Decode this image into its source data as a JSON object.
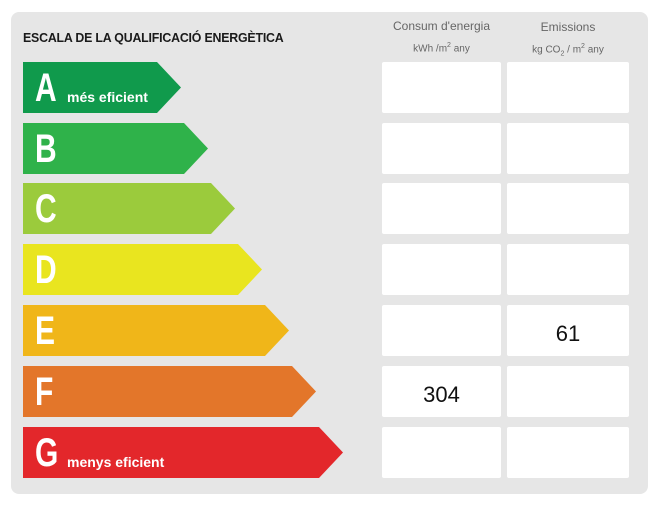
{
  "title": "ESCALA DE LA QUALIFICACIÓ ENERGÈTICA",
  "columns": {
    "energy": {
      "label": "Consum d'energia",
      "unit_prefix": "kWh /m",
      "unit_exp": "2",
      "unit_suffix": " any"
    },
    "emissions": {
      "label": "Emissions",
      "unit_prefix": "kg CO",
      "unit_sub": "2",
      "unit_mid": " / m",
      "unit_exp": "2",
      "unit_suffix": " any"
    }
  },
  "rows": [
    {
      "letter": "A",
      "caption": "més eficient",
      "color": "#109a4c",
      "energy": "",
      "emissions": ""
    },
    {
      "letter": "B",
      "caption": "",
      "color": "#2fb24a",
      "energy": "",
      "emissions": ""
    },
    {
      "letter": "C",
      "caption": "",
      "color": "#9bcb3c",
      "energy": "",
      "emissions": ""
    },
    {
      "letter": "D",
      "caption": "",
      "color": "#e9e51f",
      "energy": "",
      "emissions": ""
    },
    {
      "letter": "E",
      "caption": "",
      "color": "#f0b619",
      "energy": "",
      "emissions": "61"
    },
    {
      "letter": "F",
      "caption": "",
      "color": "#e3762a",
      "energy": "304",
      "emissions": ""
    },
    {
      "letter": "G",
      "caption": "menys eficient",
      "color": "#e3272b",
      "energy": "",
      "emissions": ""
    }
  ]
}
